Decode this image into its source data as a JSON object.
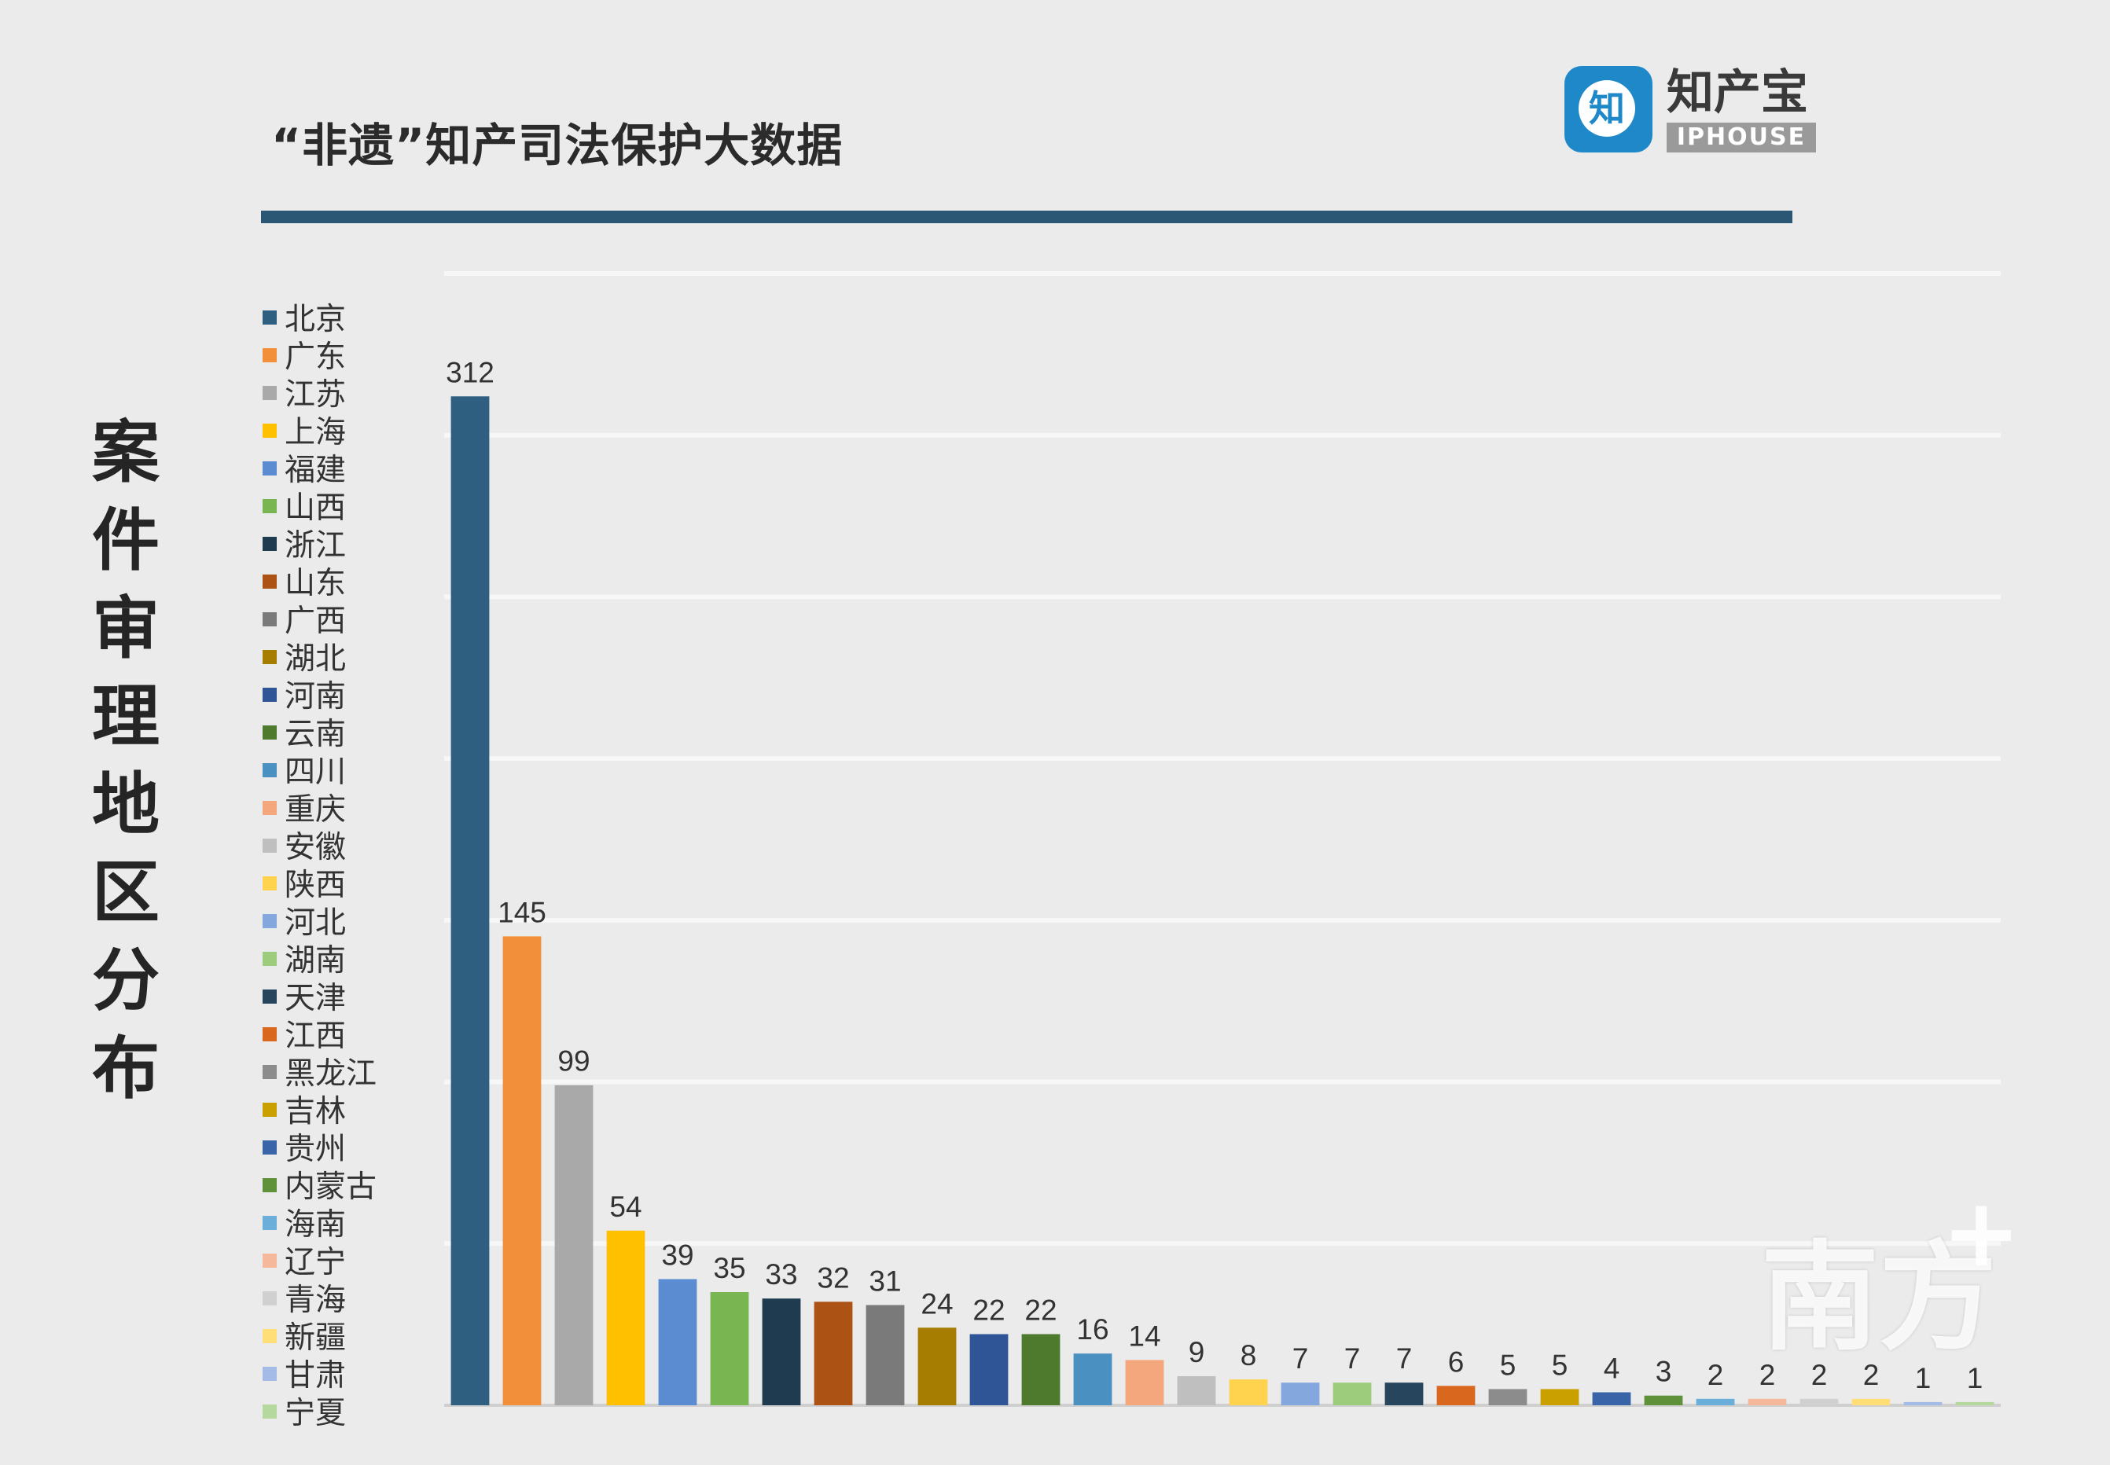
{
  "header": {
    "title": "“非遗”知产司法保护大数据",
    "logo_badge": "知",
    "logo_cn": "知产宝",
    "logo_en": "IPHOUSE"
  },
  "side_title": "案件审理地区分布",
  "watermark": {
    "text": "南方",
    "plus": "+"
  },
  "chart_data": {
    "type": "bar",
    "categories": [
      "北京",
      "广东",
      "江苏",
      "上海",
      "福建",
      "山西",
      "浙江",
      "山东",
      "广西",
      "湖北",
      "河南",
      "云南",
      "四川",
      "重庆",
      "安徽",
      "陕西",
      "河北",
      "湖南",
      "天津",
      "江西",
      "黑龙江",
      "吉林",
      "贵州",
      "内蒙古",
      "海南",
      "辽宁",
      "青海",
      "新疆",
      "甘肃",
      "宁夏"
    ],
    "values": [
      312,
      145,
      99,
      54,
      39,
      35,
      33,
      32,
      31,
      24,
      22,
      22,
      16,
      14,
      9,
      8,
      7,
      7,
      7,
      6,
      5,
      5,
      4,
      3,
      2,
      2,
      2,
      2,
      1,
      1
    ],
    "colors": [
      "#2e5f80",
      "#f28f3b",
      "#a9a9a9",
      "#ffc000",
      "#5b8bd0",
      "#79b551",
      "#1f3b50",
      "#ad5215",
      "#7a7a7a",
      "#a67d00",
      "#2f5597",
      "#4d7a2d",
      "#4a90c0",
      "#f4a67c",
      "#bfbfbf",
      "#ffd34d",
      "#84a7de",
      "#9dcc7d",
      "#27465e",
      "#d9681e",
      "#8c8c8c",
      "#c9a000",
      "#3a64a8",
      "#5f913a",
      "#6aaed9",
      "#f5b89a",
      "#d0d0d0",
      "#ffdd77",
      "#a3bbe6",
      "#b4d89e"
    ],
    "ylim": [
      0,
      350
    ],
    "gridlines": [
      0,
      50,
      100,
      150,
      200,
      250,
      300,
      350
    ],
    "grid": true,
    "legend": "left"
  }
}
